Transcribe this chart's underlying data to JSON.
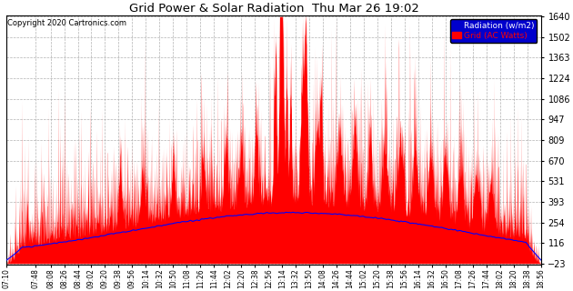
{
  "title": "Grid Power & Solar Radiation  Thu Mar 26 19:02",
  "copyright": "Copyright 2020 Cartronics.com",
  "legend_radiation": "Radiation (w/m2)",
  "legend_grid": "Grid (AC Watts)",
  "ylim_min": -23.0,
  "ylim_max": 1640.3,
  "yticks": [
    1640.3,
    1501.7,
    1363.1,
    1224.5,
    1085.9,
    947.3,
    808.6,
    670.0,
    531.4,
    392.8,
    254.2,
    115.6,
    -23.0
  ],
  "background_color": "#ffffff",
  "plot_bg_color": "#ffffff",
  "grid_color": "#aaaaaa",
  "radiation_color": "#0000ff",
  "grid_power_color": "#ff0000",
  "fill_color": "#ff0000",
  "start_hhmm": "07:10",
  "end_hhmm": "18:56",
  "xtick_labels": [
    "07:10",
    "07:48",
    "08:08",
    "08:26",
    "08:44",
    "09:02",
    "09:20",
    "09:38",
    "09:56",
    "10:14",
    "10:32",
    "10:50",
    "11:08",
    "11:26",
    "11:44",
    "12:02",
    "12:20",
    "12:38",
    "12:56",
    "13:14",
    "13:32",
    "13:50",
    "14:08",
    "14:26",
    "14:44",
    "15:02",
    "15:20",
    "15:38",
    "15:56",
    "16:14",
    "16:32",
    "16:50",
    "17:08",
    "17:26",
    "17:44",
    "18:02",
    "18:20",
    "18:38",
    "18:56"
  ]
}
